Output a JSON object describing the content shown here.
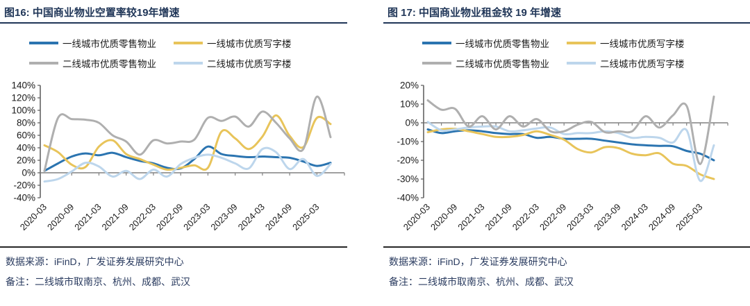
{
  "panels": [
    {
      "title": "图16:  中国商业物业空置率较19年增速",
      "source": "数据来源：iFinD，广发证券发展研究中心",
      "note": "备注：二线城市取南京、杭州、成都、武汉"
    },
    {
      "title": "图 17:  中国商业物业租金较 19 年增速",
      "source": "数据来源：iFinD，广发证券发展研究中心",
      "note": "备注：二线城市取南京、杭州、成都、武汉"
    }
  ],
  "colors": {
    "title_navy": "#1f3557",
    "footer_navy": "#2b3c60",
    "axis_gray": "#808080",
    "tier1_retail_blue": "#2b74b0",
    "tier1_office_yellow": "#e8c45a",
    "tier2_retail_gray": "#afafaf",
    "tier2_office_lightblue": "#bdd6ec"
  },
  "chart_data": [
    {
      "type": "line",
      "title": "图16:  中国商业物业空置率较19年增速",
      "smooth": true,
      "grid": false,
      "legend_position": "top",
      "ylim": [
        -40,
        140
      ],
      "y_tick_step": 20,
      "y_unit": "%",
      "x_tick_every": 2,
      "x": [
        "2020-03",
        "2020-06",
        "2020-09",
        "2020-12",
        "2021-03",
        "2021-06",
        "2021-09",
        "2021-12",
        "2022-03",
        "2022-06",
        "2022-09",
        "2022-12",
        "2023-03",
        "2023-06",
        "2023-09",
        "2023-12",
        "2024-03",
        "2024-06",
        "2024-09",
        "2024-12",
        "2025-03",
        "2025-06"
      ],
      "x_tick_labels": [
        "2020-03",
        "2020-09",
        "2021-03",
        "2021-09",
        "2022-03",
        "2022-09",
        "2023-03",
        "2023-09",
        "2024-03",
        "2024-09",
        "2025-03"
      ],
      "series": [
        {
          "name": "一线城市优质零售物业",
          "color": "#2b74b0",
          "z": 0,
          "values": [
            3,
            15,
            26,
            31,
            28,
            32,
            25,
            19,
            15,
            8,
            7,
            22,
            42,
            30,
            27,
            25,
            26,
            25,
            24,
            18,
            11,
            16
          ]
        },
        {
          "name": "一线城市优质写字楼",
          "color": "#e8c45a",
          "z": 1,
          "values": [
            44,
            33,
            13,
            9,
            42,
            52,
            30,
            22,
            13,
            5,
            8,
            12,
            8,
            66,
            55,
            38,
            58,
            92,
            59,
            41,
            88,
            78
          ]
        },
        {
          "name": "二线城市优质零售物业",
          "color": "#afafaf",
          "z": 3,
          "values": [
            3,
            88,
            86,
            85,
            80,
            60,
            50,
            29,
            52,
            47,
            50,
            53,
            88,
            83,
            90,
            74,
            98,
            80,
            55,
            38,
            122,
            57
          ]
        },
        {
          "name": "二线城市优质写字楼",
          "color": "#bdd6ec",
          "z": 2,
          "values": [
            -14,
            -10,
            2,
            16,
            10,
            -6,
            3,
            -10,
            5,
            -6,
            14,
            24,
            29,
            24,
            15,
            7,
            38,
            33,
            6,
            22,
            -5,
            14
          ]
        }
      ]
    },
    {
      "type": "line",
      "title": "图 17:  中国商业物业租金较 19 年增速",
      "smooth": true,
      "grid": false,
      "legend_position": "top",
      "ylim": [
        -40,
        20
      ],
      "y_tick_step": 10,
      "y_unit": "%",
      "x_tick_every": 1,
      "x": [
        "2020-03",
        "2020-06",
        "2020-09",
        "2020-12",
        "2021-03",
        "2021-06",
        "2021-09",
        "2021-12",
        "2022-03",
        "2022-06",
        "2022-09",
        "2022-12",
        "2023-03",
        "2023-06",
        "2023-09",
        "2023-12",
        "2024-03",
        "2024-06",
        "2024-09",
        "2024-12",
        "2025-03",
        "2025-06"
      ],
      "x_tick_labels": [
        "2020-03",
        "2020-09",
        "2021-03",
        "2021-09",
        "2022-03",
        "2022-09",
        "2023-03",
        "2023-09",
        "2024-03",
        "2024-09",
        "2025-03"
      ],
      "series": [
        {
          "name": "一线城市优质零售物业",
          "color": "#2b74b0",
          "z": 0,
          "values": [
            -3.5,
            -5.5,
            -4.5,
            -4,
            -4.5,
            -5.5,
            -6,
            -6,
            -8,
            -7.5,
            -8.5,
            -8.5,
            -8.5,
            -9.5,
            -10.5,
            -11.5,
            -12,
            -12.3,
            -12.5,
            -15,
            -16.5,
            -20
          ]
        },
        {
          "name": "一线城市优质写字楼",
          "color": "#e8c45a",
          "z": 1,
          "values": [
            -5,
            -3.5,
            -3.2,
            -4.5,
            -6,
            -7.5,
            -7.5,
            -6.5,
            -4.5,
            -6.5,
            -9,
            -14,
            -15.8,
            -13,
            -13.5,
            -16.5,
            -17.3,
            -16.3,
            -21.8,
            -23,
            -27.5,
            -30
          ]
        },
        {
          "name": "二线城市优质零售物业",
          "color": "#afafaf",
          "z": 3,
          "values": [
            12,
            7,
            7.5,
            -2,
            3.5,
            -3.5,
            3.5,
            -2,
            2,
            -4.5,
            -4.5,
            -1,
            0.5,
            -5,
            -4.5,
            -4.5,
            3.5,
            -2.5,
            4,
            9,
            -22,
            14
          ]
        },
        {
          "name": "二线城市优质写字楼",
          "color": "#bdd6ec",
          "z": 2,
          "values": [
            0.5,
            -4,
            -3.5,
            -2.5,
            -2,
            -2,
            -4.5,
            -4,
            -3,
            -2.5,
            -6,
            -5.5,
            -5.5,
            -4.5,
            -5.5,
            -8,
            -7.5,
            -8,
            -10.5,
            -4,
            -31,
            -12
          ]
        }
      ]
    }
  ]
}
